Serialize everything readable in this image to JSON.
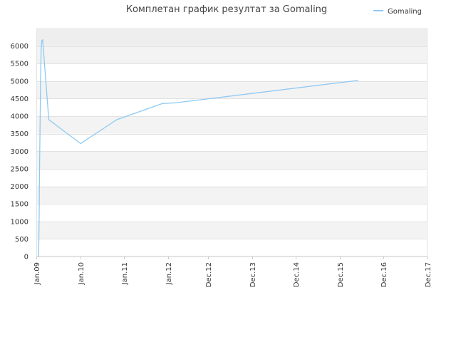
{
  "chart_data": {
    "type": "line",
    "title": "Комплетан график резултат за Gomaling",
    "xlabel": "",
    "ylabel": "",
    "ylim": [
      0,
      6500
    ],
    "y_ticks": [
      0,
      500,
      1000,
      1500,
      2000,
      2500,
      3000,
      3500,
      4000,
      4500,
      5000,
      5500,
      6000
    ],
    "x_ticks": [
      "Jan.09",
      "Jan.10",
      "Jan.11",
      "Jan.12",
      "Dec.12",
      "Dec.13",
      "Dec.14",
      "Dec.15",
      "Dec.16",
      "Dec.17"
    ],
    "x_tick_dates": [
      "2009-01-01",
      "2010-01-01",
      "2011-01-01",
      "2012-01-01",
      "2012-12-01",
      "2013-12-01",
      "2014-12-01",
      "2015-12-01",
      "2016-12-01",
      "2017-12-01"
    ],
    "grid": true,
    "legend_position": "top-right",
    "series": [
      {
        "name": "Gomaling",
        "color": "#8ec9f2",
        "points": [
          {
            "x": "2009-01-20",
            "y": 0
          },
          {
            "x": "2009-01-24",
            "y": 1000
          },
          {
            "x": "2009-01-27",
            "y": 2300
          },
          {
            "x": "2009-01-31",
            "y": 3500
          },
          {
            "x": "2009-02-05",
            "y": 4900
          },
          {
            "x": "2009-02-10",
            "y": 5900
          },
          {
            "x": "2009-02-15",
            "y": 6150
          },
          {
            "x": "2009-02-22",
            "y": 6180
          },
          {
            "x": "2009-03-01",
            "y": 5900
          },
          {
            "x": "2009-04-15",
            "y": 3900
          },
          {
            "x": "2010-01-05",
            "y": 3220
          },
          {
            "x": "2010-11-01",
            "y": 3900
          },
          {
            "x": "2011-11-15",
            "y": 4360
          },
          {
            "x": "2012-03-01",
            "y": 4380
          },
          {
            "x": "2016-05-01",
            "y": 5020
          }
        ]
      }
    ]
  }
}
